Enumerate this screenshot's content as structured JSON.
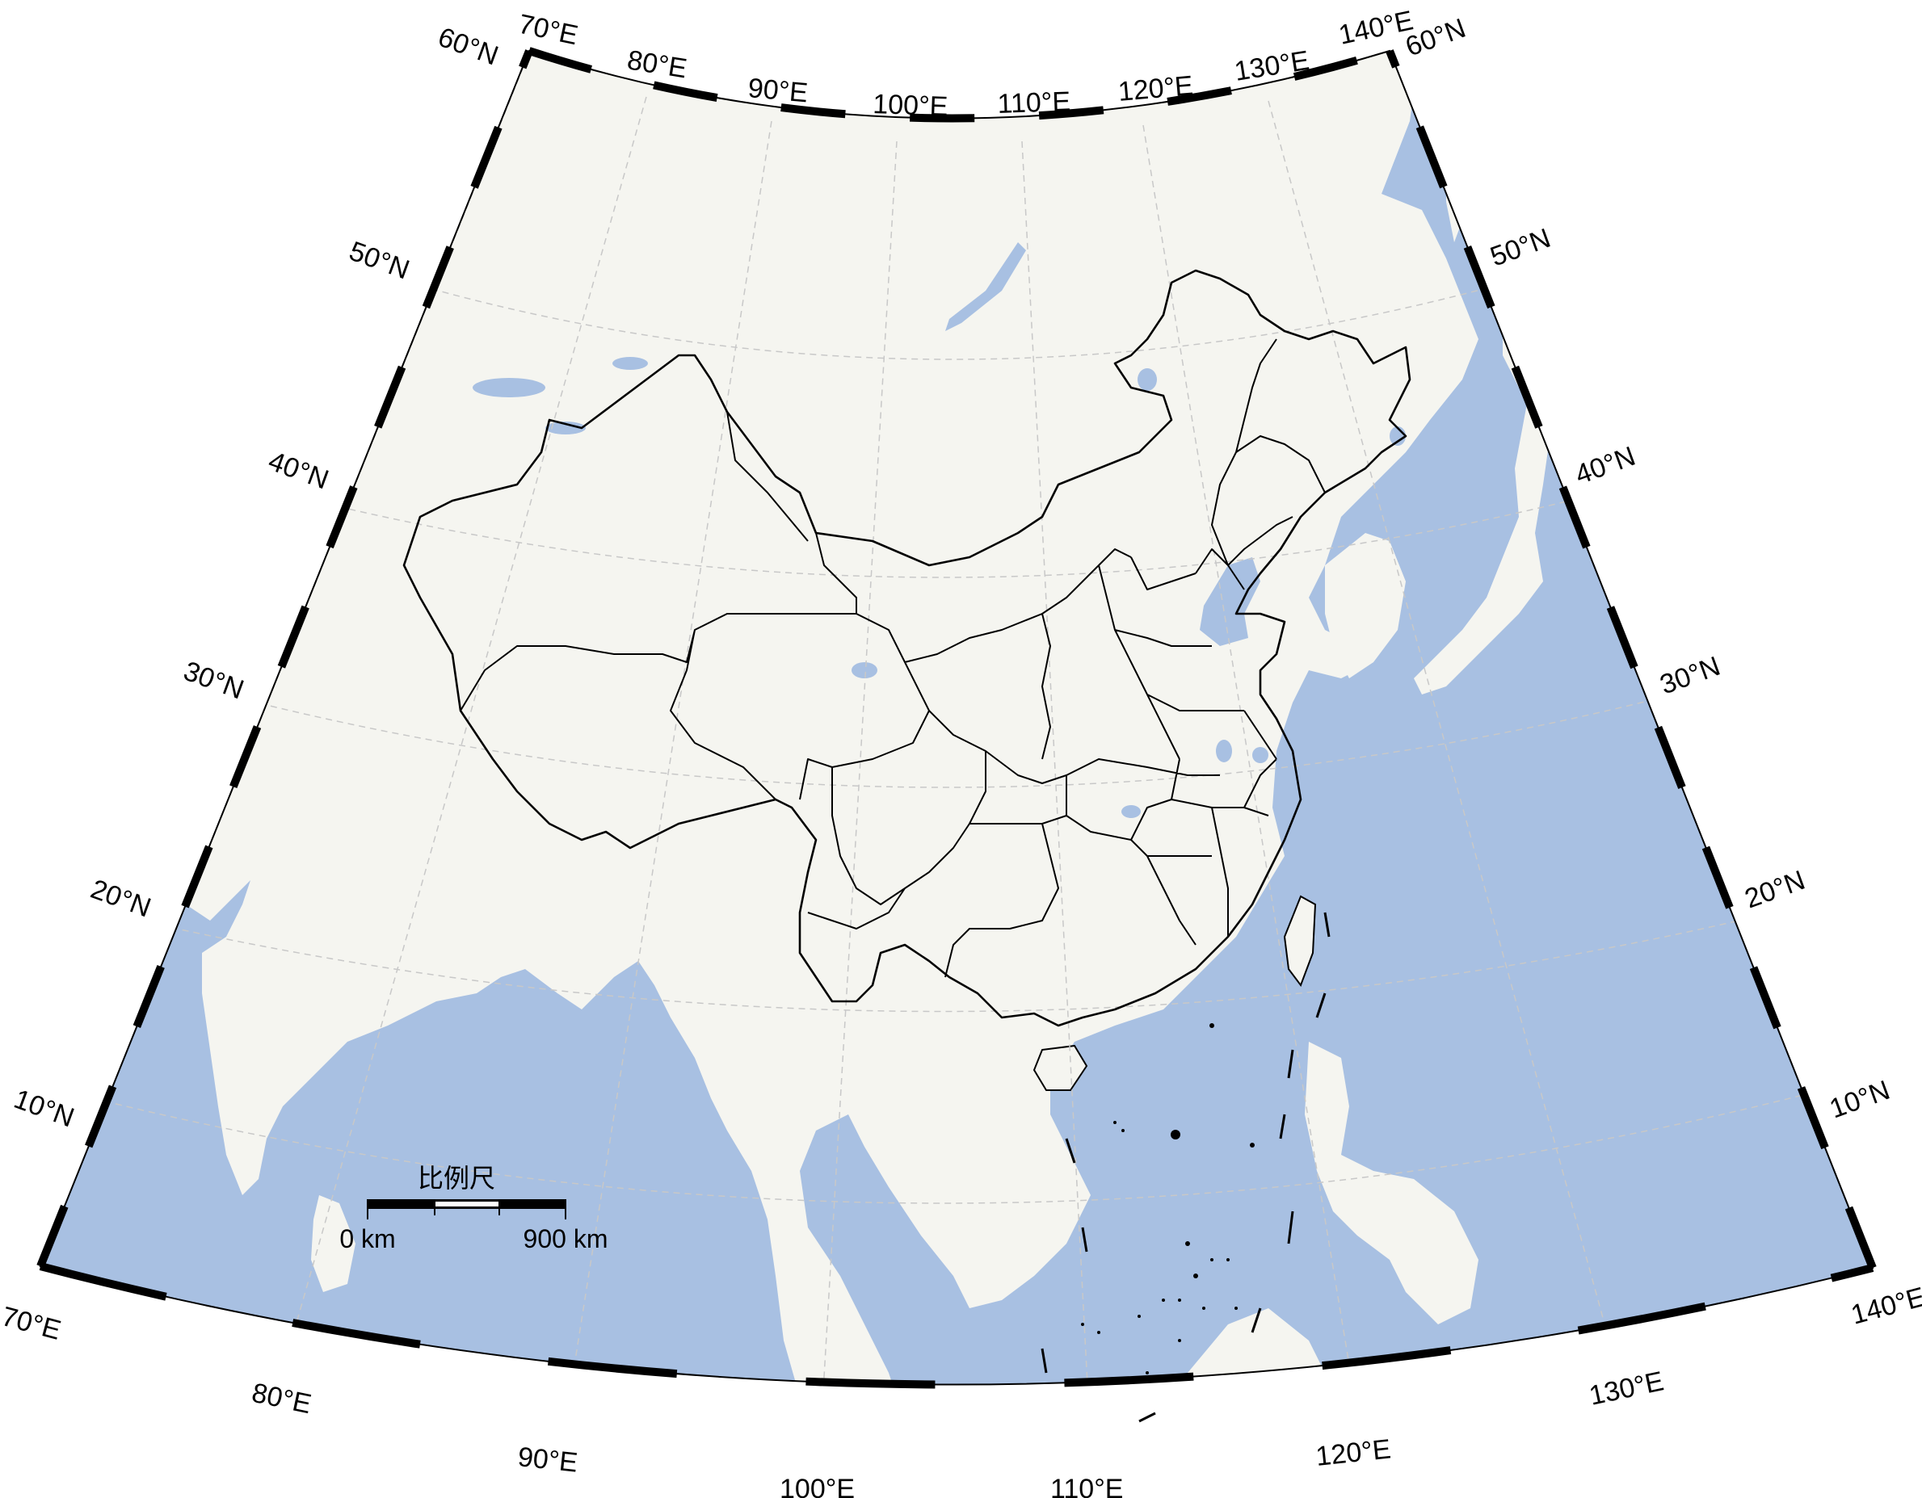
{
  "map": {
    "colors": {
      "land": "#f5f5f0",
      "water": "#a8c0e2",
      "border": "#000000",
      "grid": "#c8c8c8",
      "frame": "#000000"
    },
    "lon_labels": [
      "70°E",
      "80°E",
      "90°E",
      "100°E",
      "110°E",
      "120°E",
      "130°E",
      "140°E"
    ],
    "lat_labels": [
      "10°N",
      "20°N",
      "30°N",
      "40°N",
      "50°N",
      "60°N"
    ],
    "scale_bar": {
      "title": "比例尺",
      "start": "0 km",
      "end": "900 km"
    }
  }
}
